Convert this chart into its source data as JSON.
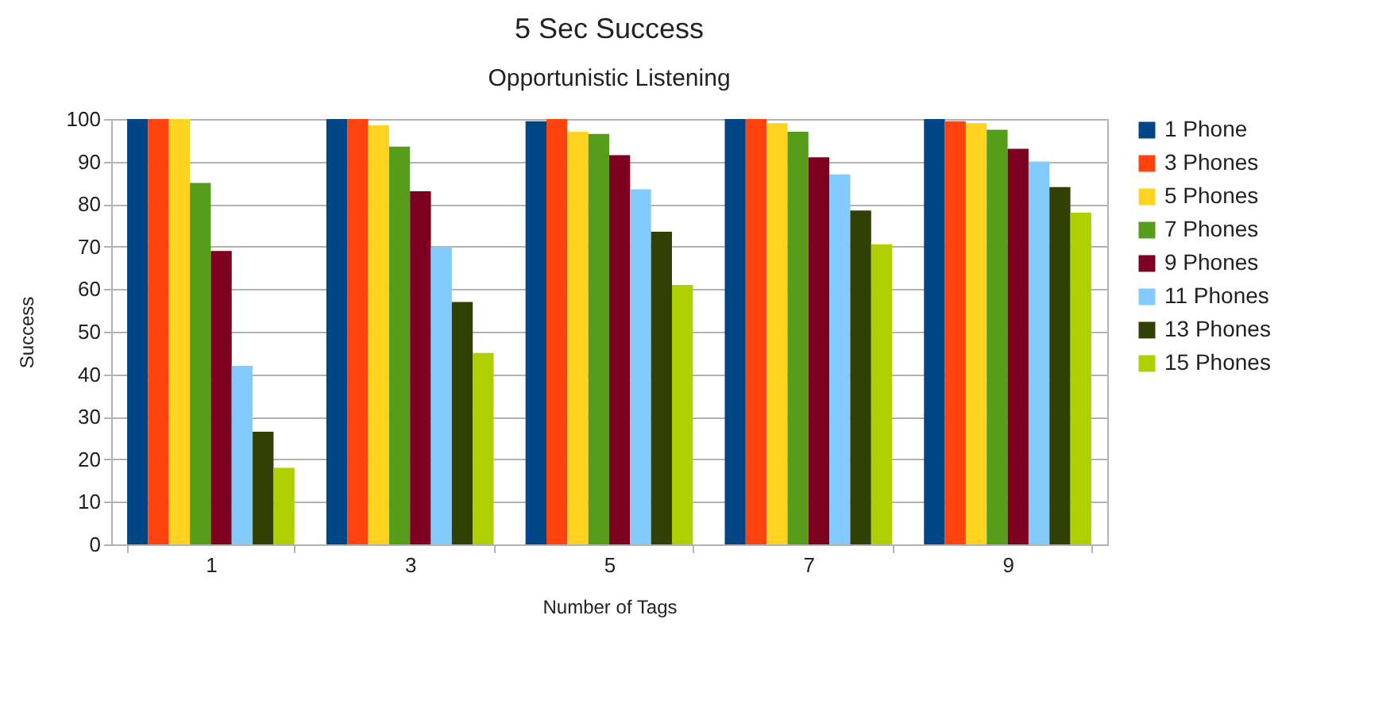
{
  "chart_data": {
    "type": "bar",
    "title": "5 Sec Success",
    "subtitle": "Opportunistic Listening",
    "xlabel": "Number of Tags",
    "ylabel": "Success",
    "categories": [
      "1",
      "3",
      "5",
      "7",
      "9"
    ],
    "series": [
      {
        "name": "1 Phone",
        "color": "#004586",
        "values": [
          100,
          100,
          99.5,
          100,
          100
        ]
      },
      {
        "name": "3 Phones",
        "color": "#ff420e",
        "values": [
          100,
          100,
          100,
          100,
          99.5
        ]
      },
      {
        "name": "5 Phones",
        "color": "#ffd320",
        "values": [
          100,
          98.5,
          97,
          99,
          99
        ]
      },
      {
        "name": "7 Phones",
        "color": "#579d1c",
        "values": [
          85,
          93.5,
          96.5,
          97,
          97.5
        ]
      },
      {
        "name": "9 Phones",
        "color": "#7e0021",
        "values": [
          69,
          83,
          91.5,
          91,
          93
        ]
      },
      {
        "name": "11 Phones",
        "color": "#83caff",
        "values": [
          42,
          70,
          83.5,
          87,
          90
        ]
      },
      {
        "name": "13 Phones",
        "color": "#314004",
        "values": [
          26.5,
          57,
          73.5,
          78.5,
          84
        ]
      },
      {
        "name": "15 Phones",
        "color": "#aecf00",
        "values": [
          18,
          45,
          61,
          70.5,
          78
        ]
      }
    ],
    "ylim": [
      0,
      100
    ],
    "yticks": [
      0,
      10,
      20,
      30,
      40,
      50,
      60,
      70,
      80,
      90,
      100
    ],
    "grid": "y",
    "legend": "right"
  }
}
